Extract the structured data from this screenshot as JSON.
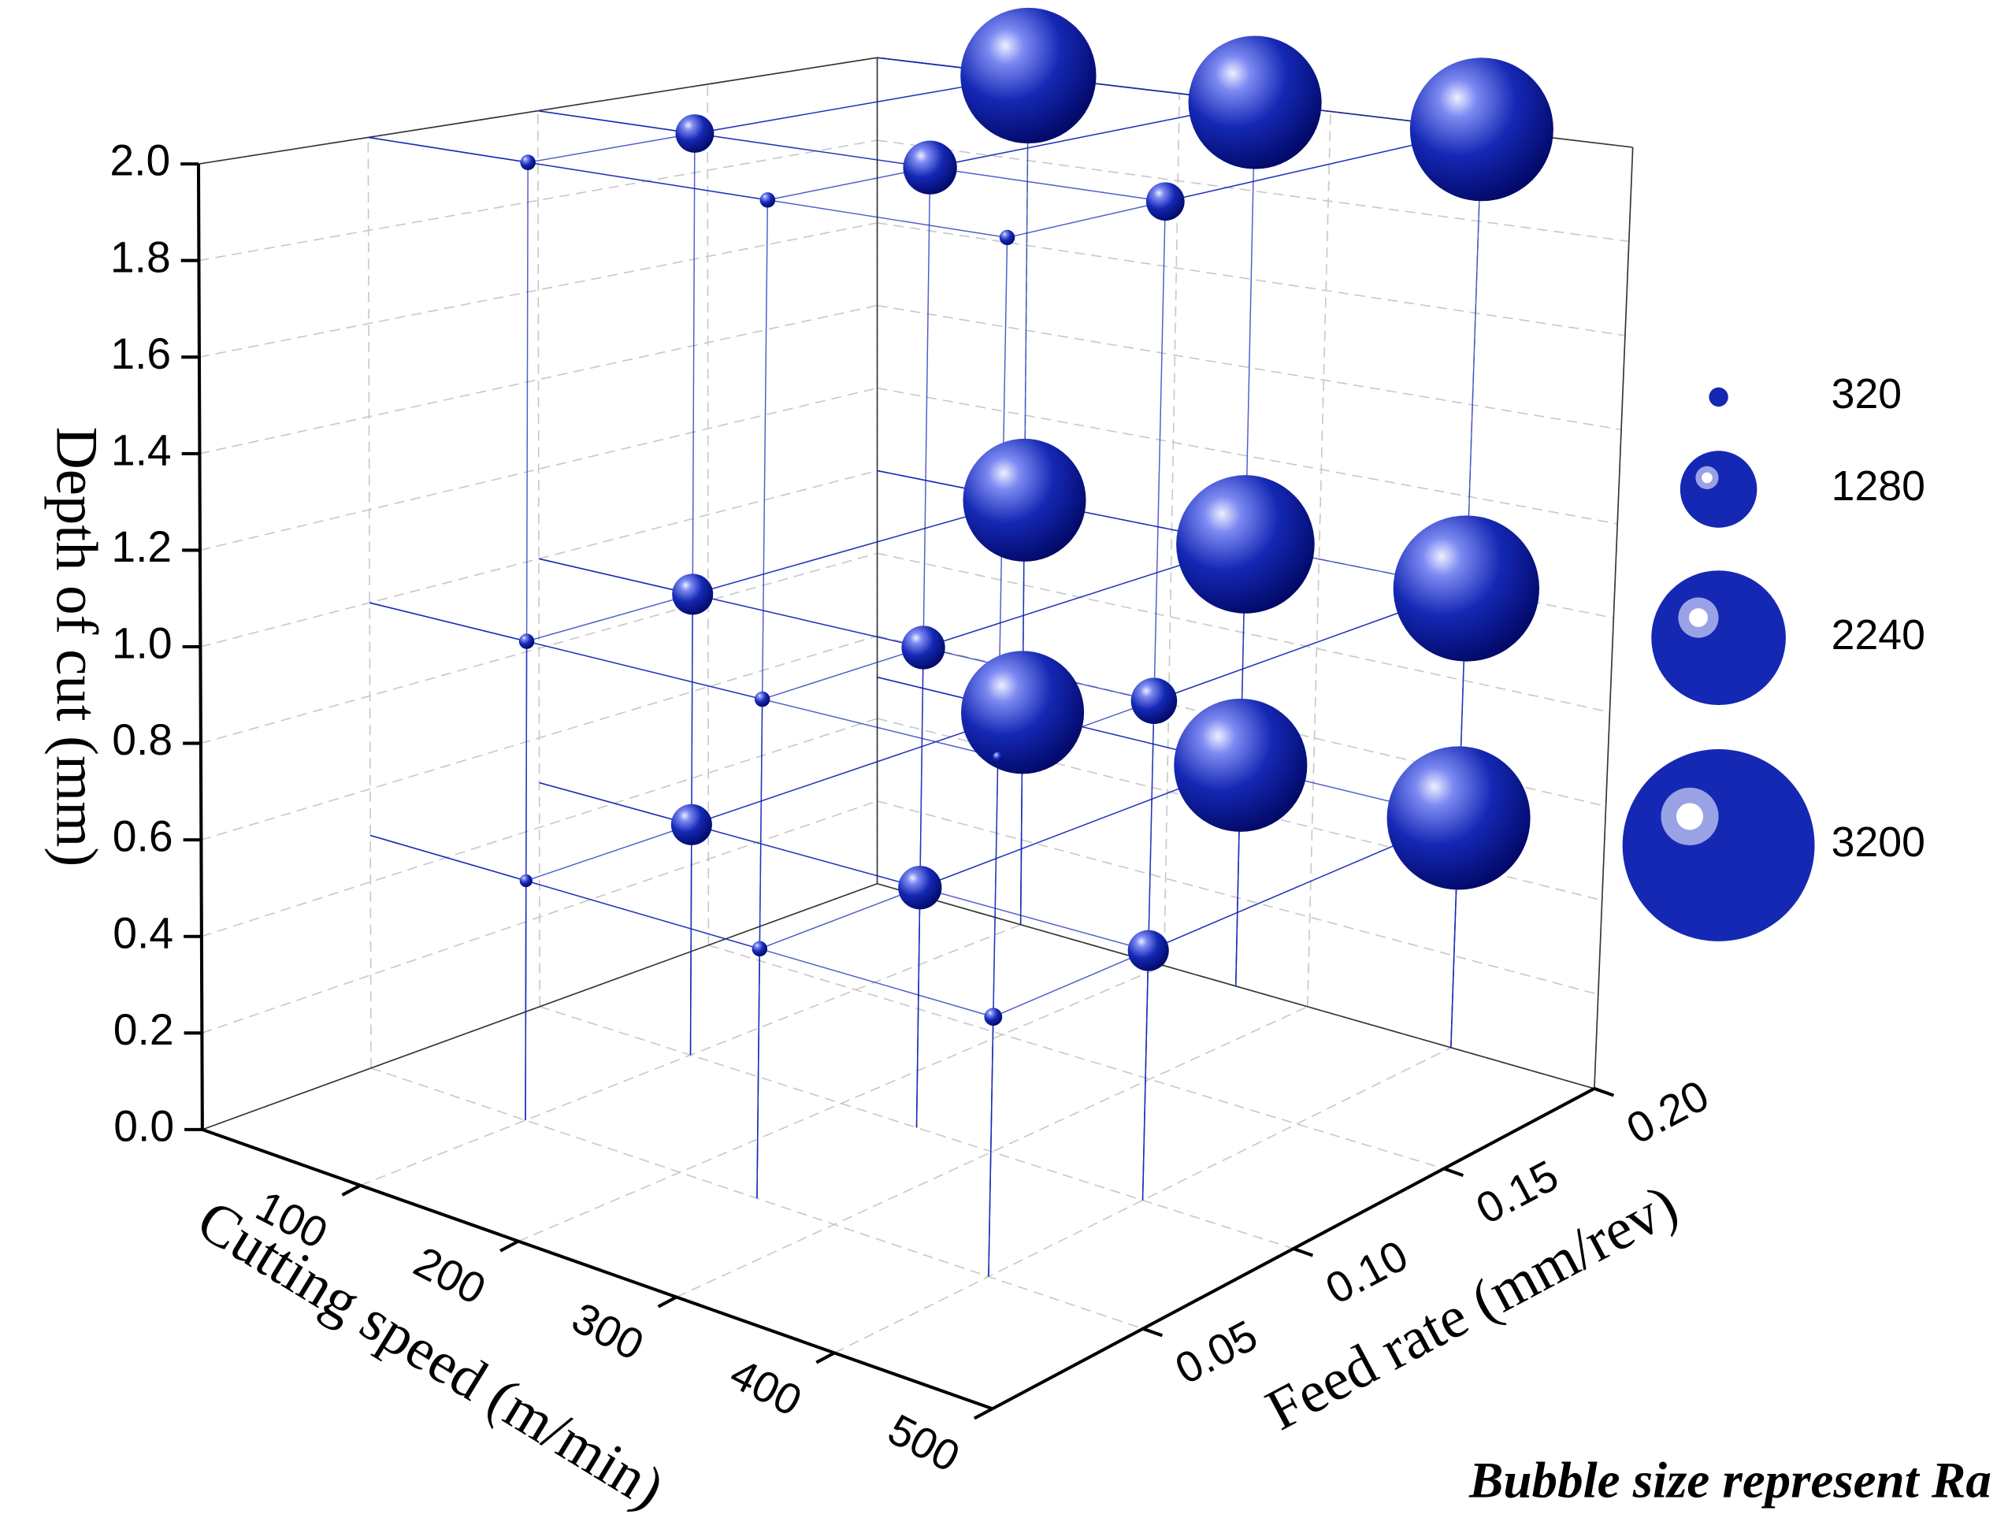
{
  "chart_data": {
    "type": "bubble3d",
    "xlabel": "Cutting speed (m/min)",
    "ylabel": "Feed rate (mm/rev)",
    "zlabel": "Depth of cut (mm)",
    "annotation": "Bubble size represent Ra",
    "color": "#1428b4",
    "xlim": [
      0,
      500
    ],
    "xticks": [
      100,
      200,
      300,
      400,
      500
    ],
    "ylim": [
      0,
      0.2
    ],
    "yticks": [
      0.05,
      {
        "value": 0.1,
        "label": "0.10"
      },
      0.15,
      {
        "value": 0.2,
        "label": "0.20"
      }
    ],
    "zlim": [
      0,
      2
    ],
    "zticks": [
      {
        "value": 0,
        "label": "0.0"
      },
      0.2,
      0.4,
      0.6,
      0.8,
      {
        "value": 1,
        "label": "1.0"
      },
      1.2,
      1.4,
      1.6,
      1.8,
      {
        "value": 2,
        "label": "2.0"
      }
    ],
    "grid": true,
    "size_legend": [
      320,
      1280,
      2240,
      3200
    ],
    "x": [
      100,
      250,
      400,
      100,
      250,
      400,
      100,
      250,
      400,
      100,
      250,
      400,
      100,
      250,
      400,
      100,
      250,
      400,
      100,
      250,
      400,
      100,
      250,
      400,
      100,
      250,
      400
    ],
    "y": [
      0.05,
      0.05,
      0.05,
      0.1,
      0.1,
      0.1,
      0.2,
      0.2,
      0.2,
      0.05,
      0.05,
      0.05,
      0.1,
      0.1,
      0.1,
      0.2,
      0.2,
      0.2,
      0.05,
      0.05,
      0.05,
      0.1,
      0.1,
      0.1,
      0.2,
      0.2,
      0.2
    ],
    "z": [
      0.5,
      0.5,
      0.5,
      0.5,
      0.5,
      0.5,
      0.5,
      0.5,
      0.5,
      1,
      1,
      1,
      1,
      1,
      1,
      1,
      1,
      1,
      2,
      2,
      2,
      2,
      2,
      2,
      2,
      2,
      2
    ],
    "sizes": [
      213,
      256,
      299,
      683,
      725,
      683,
      2048,
      2219,
      2389,
      256,
      256,
      171,
      683,
      725,
      768,
      2048,
      2304,
      2432,
      256,
      256,
      256,
      640,
      896,
      640,
      2261,
      2219,
      2389
    ]
  }
}
